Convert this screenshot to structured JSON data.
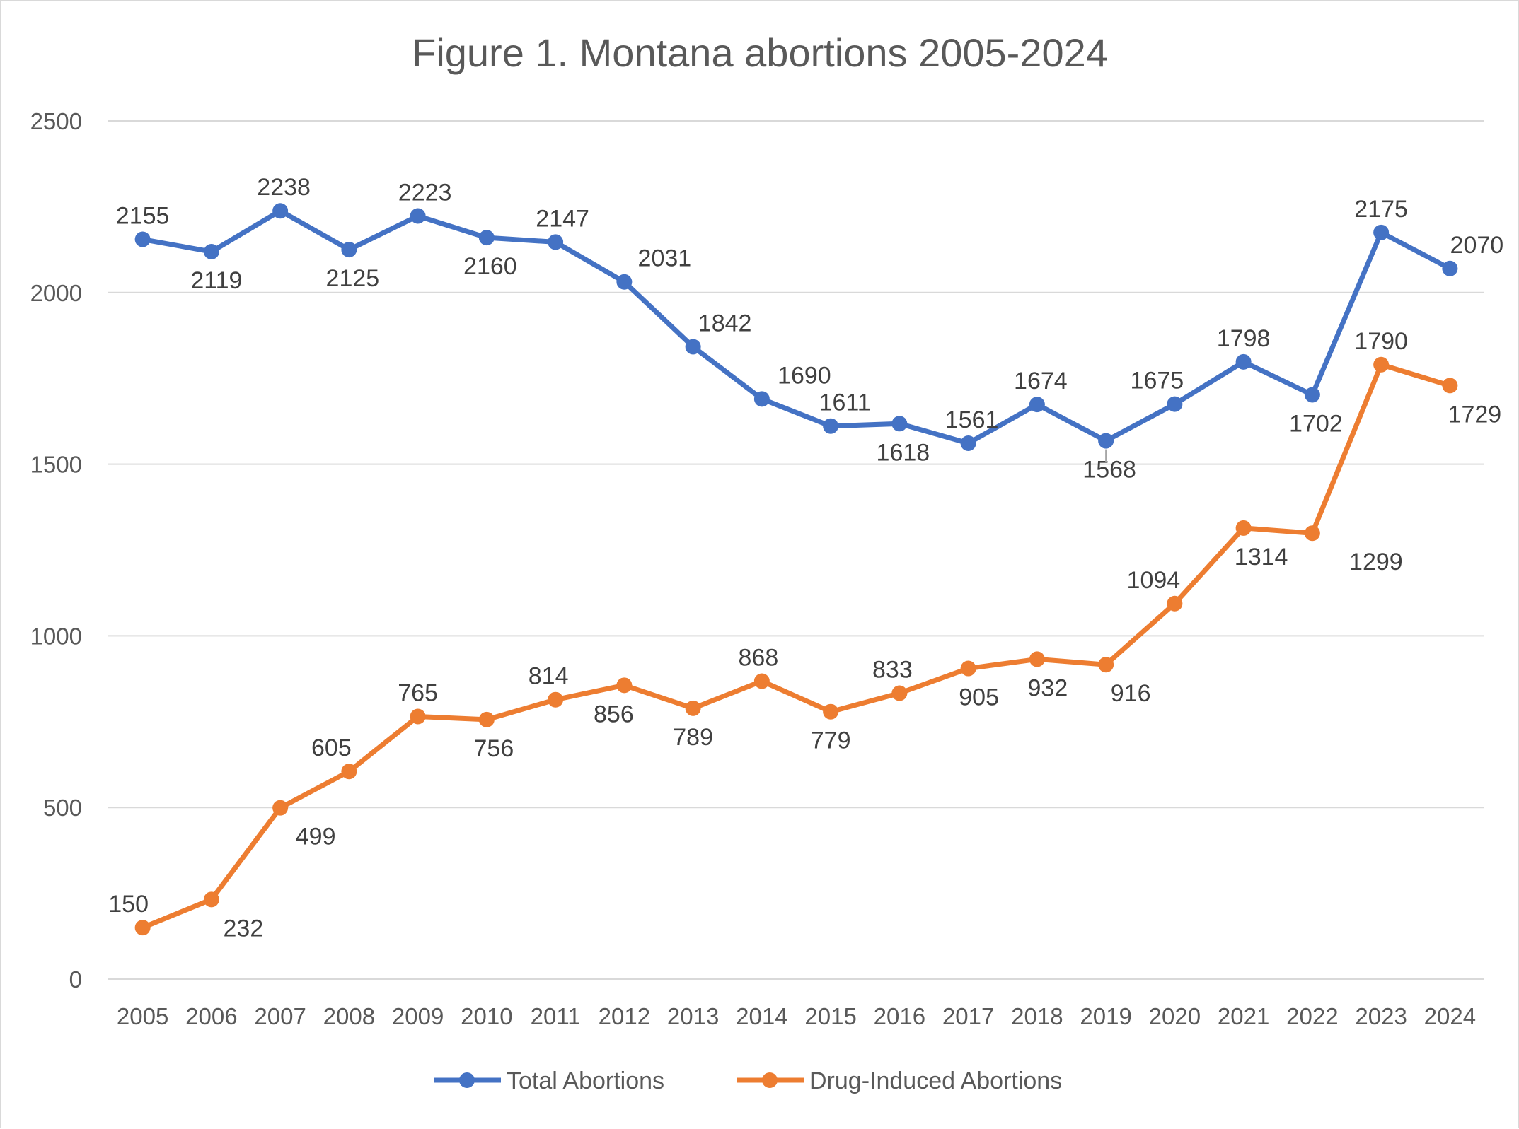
{
  "chart_data": {
    "type": "line",
    "title": "Figure 1. Montana abortions 2005-2024",
    "xlabel": "",
    "ylabel": "",
    "x": [
      "2005",
      "2006",
      "2007",
      "2008",
      "2009",
      "2010",
      "2011",
      "2012",
      "2013",
      "2014",
      "2015",
      "2016",
      "2017",
      "2018",
      "2019",
      "2020",
      "2021",
      "2022",
      "2023",
      "2024"
    ],
    "ylim": [
      0,
      2500
    ],
    "yticks": [
      "0",
      "500",
      "1000",
      "1500",
      "2000",
      "2500"
    ],
    "grid": true,
    "legend_position": "bottom",
    "series": [
      {
        "name": "Total Abortions",
        "color": "#4472C4",
        "values": [
          2155,
          2119,
          2238,
          2125,
          2223,
          2160,
          2147,
          2031,
          1842,
          1690,
          1611,
          1618,
          1561,
          1674,
          1568,
          1675,
          1798,
          1702,
          2175,
          2070
        ],
        "labels": [
          "2155",
          "2119",
          "2238",
          "2125",
          "2223",
          "2160",
          "2147",
          "2031",
          "1842",
          "1690",
          "1611",
          "1618",
          "1561",
          "1674",
          "1568",
          "1675",
          "1798",
          "1702",
          "2175",
          "2070"
        ]
      },
      {
        "name": "Drug-Induced Abortions",
        "color": "#ED7D31",
        "values": [
          150,
          232,
          499,
          605,
          765,
          756,
          814,
          856,
          789,
          868,
          779,
          833,
          905,
          932,
          916,
          1094,
          1314,
          1299,
          1790,
          1729
        ],
        "labels": [
          "150",
          "232",
          "499",
          "605",
          "765",
          "756",
          "814",
          "856",
          "789",
          "868",
          "779",
          "833",
          "905",
          "932",
          "916",
          "1094",
          "1314",
          "1299",
          "1790",
          "1729"
        ]
      }
    ]
  }
}
